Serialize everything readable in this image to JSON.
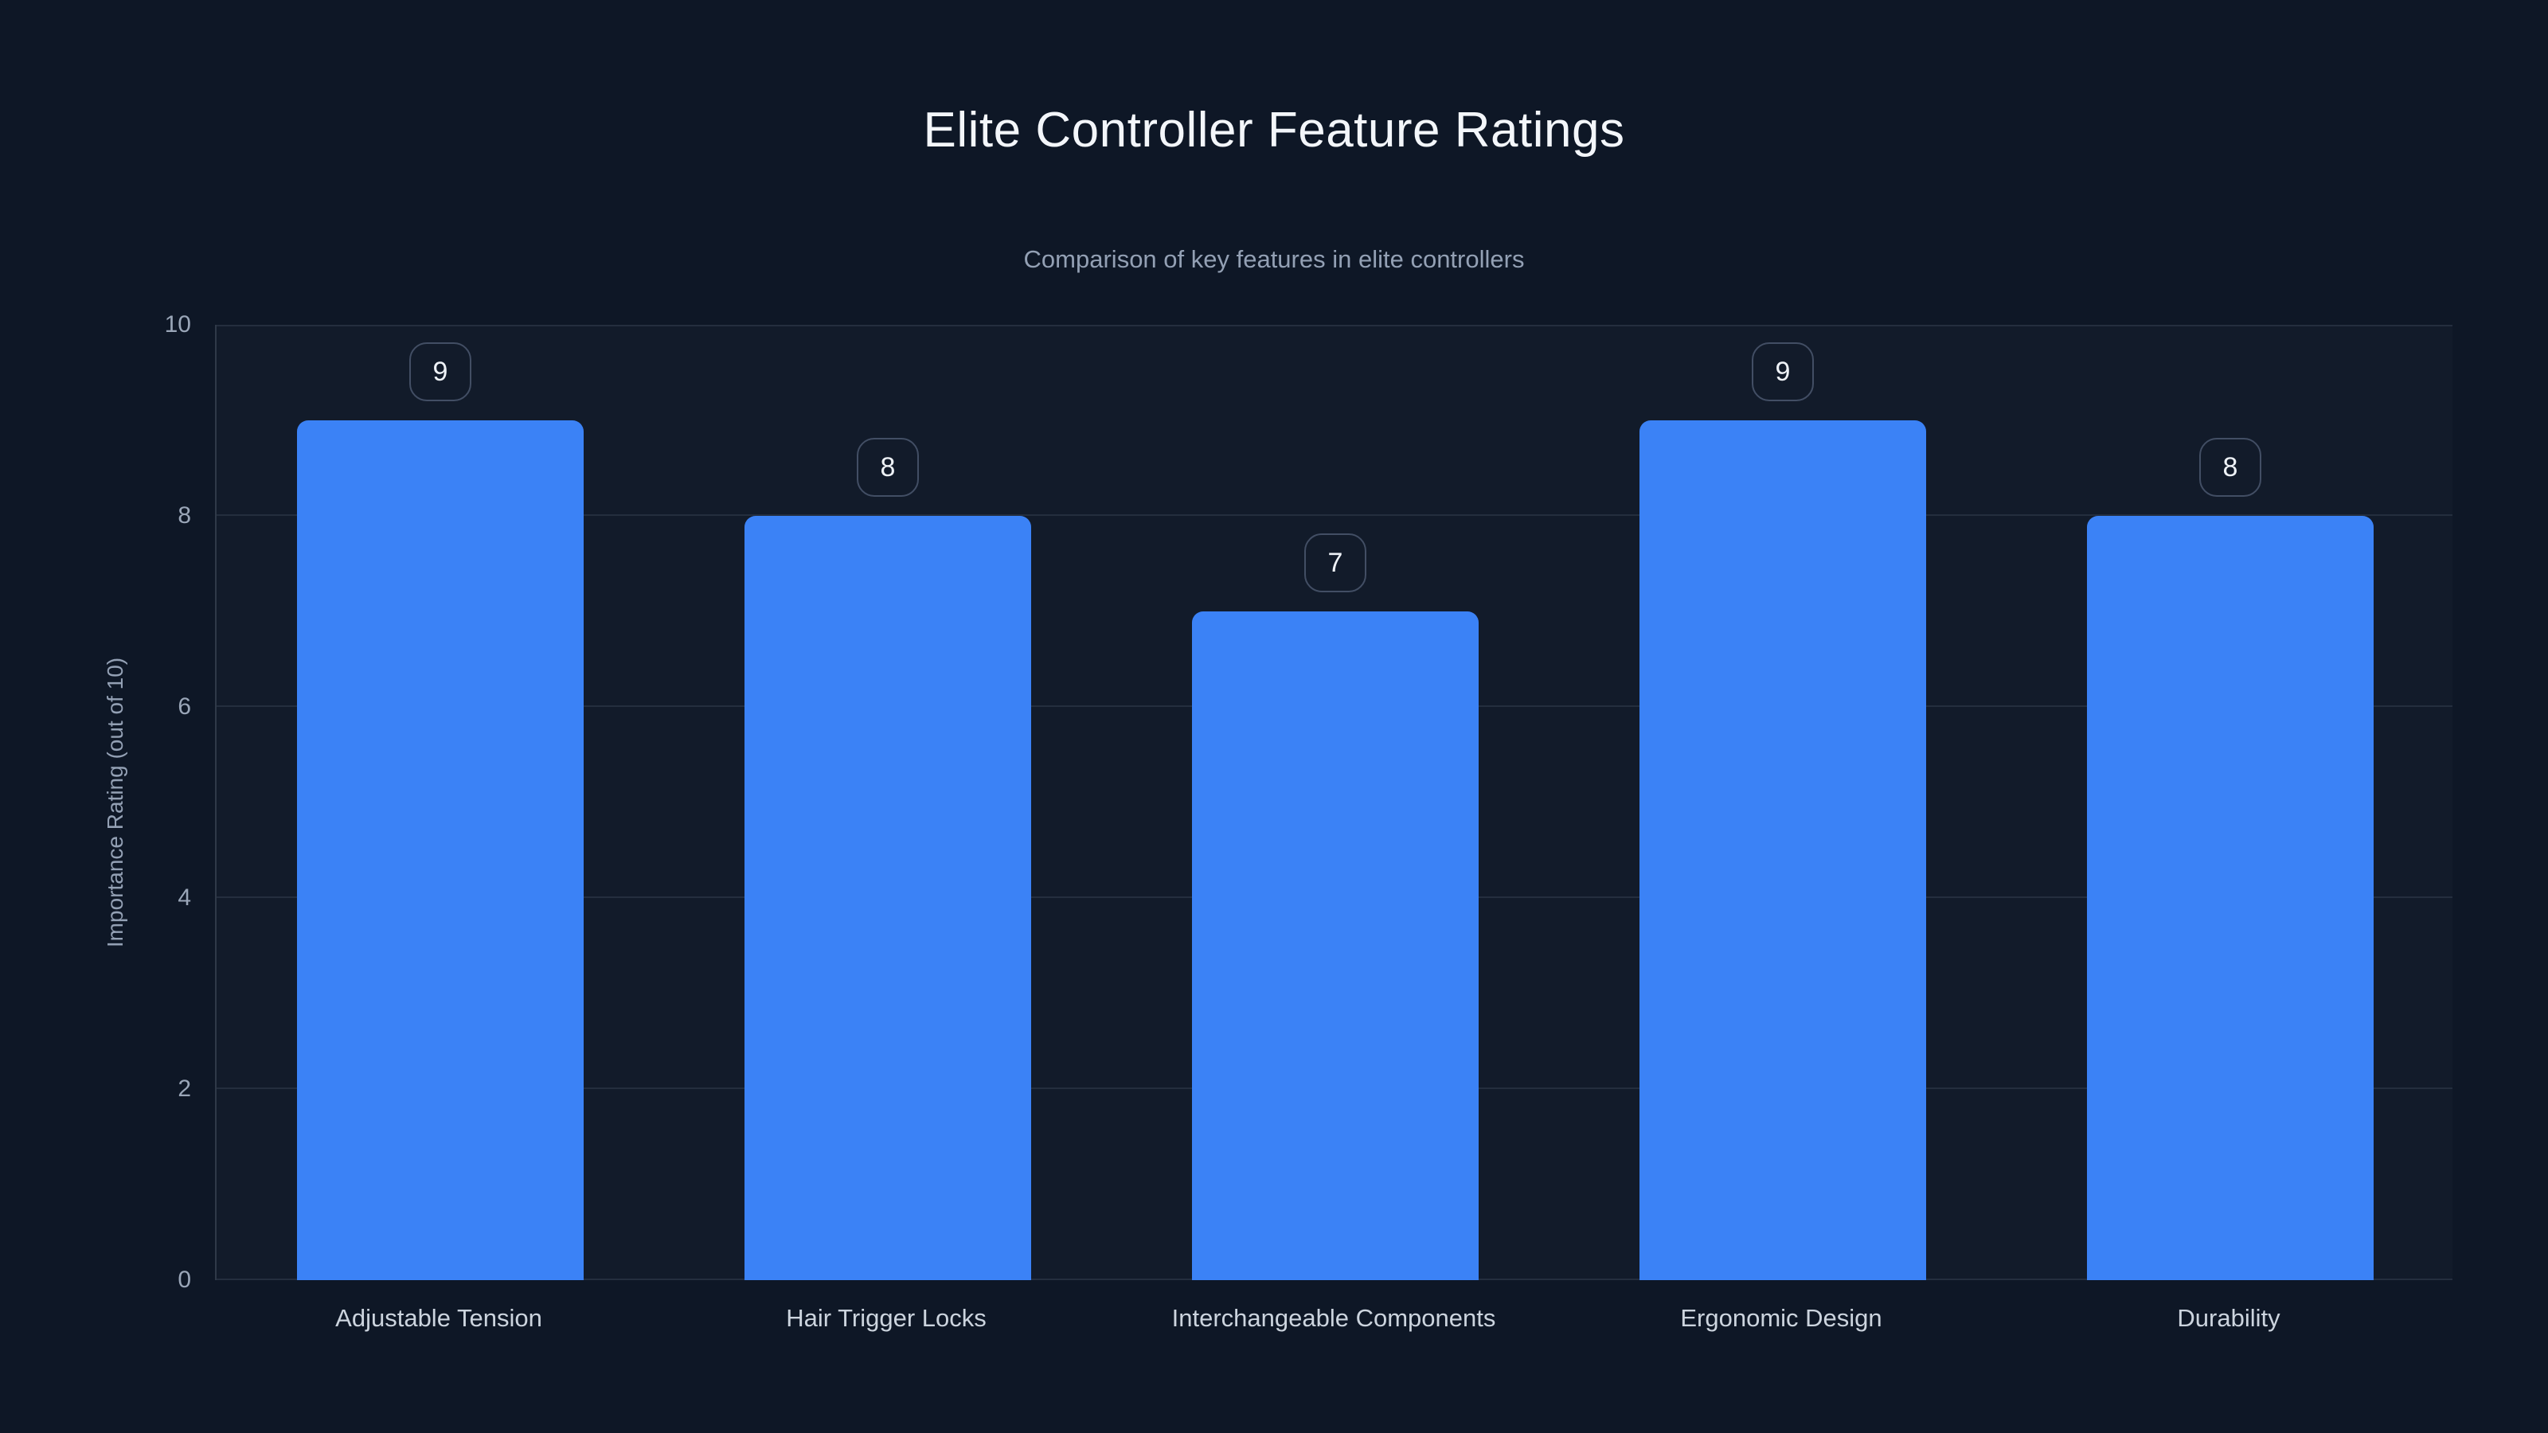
{
  "colors": {
    "background": "#0e1726",
    "bar": "#3b82f6",
    "title_text": "#f3f6fa",
    "muted_text": "#93a0b4",
    "gridline": "rgba(148,163,184,0.14)"
  },
  "header": {
    "title": "Elite Controller Feature Ratings",
    "subtitle": "Comparison of key features in elite controllers"
  },
  "chart_data": {
    "type": "bar",
    "title": "Elite Controller Feature Ratings",
    "subtitle": "Comparison of key features in elite controllers",
    "categories": [
      "Adjustable Tension",
      "Hair Trigger Locks",
      "Interchangeable Components",
      "Ergonomic Design",
      "Durability"
    ],
    "values": [
      9,
      8,
      7,
      9,
      8
    ],
    "data_labels": [
      "9",
      "8",
      "7",
      "9",
      "8"
    ],
    "xlabel": "",
    "ylabel": "Importance Rating (out of 10)",
    "ylim": [
      0,
      10
    ],
    "yticks": [
      0,
      2,
      4,
      6,
      8,
      10
    ],
    "grid": "horizontal",
    "legend": "none",
    "bar_color": "#3b82f6"
  }
}
